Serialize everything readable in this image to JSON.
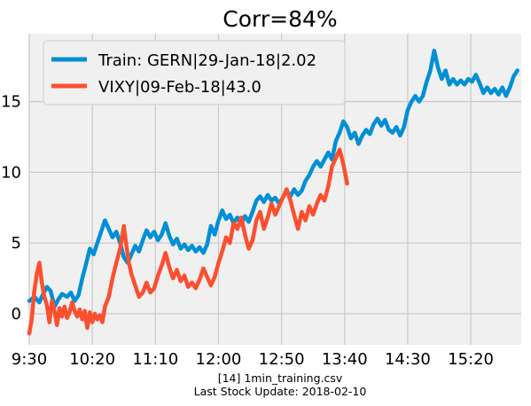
{
  "chart_data": {
    "type": "line",
    "title": "Corr=84%",
    "x_ticks": [
      "9:30",
      "10:20",
      "11:10",
      "12:00",
      "12:50",
      "13:40",
      "14:30",
      "15:20"
    ],
    "y_ticks": [
      0,
      5,
      10,
      15
    ],
    "xlim": [
      "9:30",
      "16:00"
    ],
    "ylim": [
      -2.2,
      19.8
    ],
    "grid": true,
    "legend_position": "top-left",
    "series": [
      {
        "name": "Train: GERN|29-Jan-18|2.02",
        "color": "#008fd5",
        "points": [
          [
            "9:30",
            0.9
          ],
          [
            "9:34",
            1.2
          ],
          [
            "9:38",
            0.8
          ],
          [
            "9:41",
            1.4
          ],
          [
            "9:44",
            1.9
          ],
          [
            "9:47",
            1.6
          ],
          [
            "9:50",
            0.5
          ],
          [
            "9:53",
            1.0
          ],
          [
            "9:56",
            1.4
          ],
          [
            "10:00",
            1.2
          ],
          [
            "10:03",
            1.5
          ],
          [
            "10:06",
            0.9
          ],
          [
            "10:09",
            1.3
          ],
          [
            "10:12",
            2.5
          ],
          [
            "10:15",
            3.5
          ],
          [
            "10:18",
            4.6
          ],
          [
            "10:21",
            4.2
          ],
          [
            "10:24",
            5.0
          ],
          [
            "10:27",
            5.8
          ],
          [
            "10:30",
            6.6
          ],
          [
            "10:33",
            6.0
          ],
          [
            "10:36",
            5.4
          ],
          [
            "10:39",
            5.8
          ],
          [
            "10:42",
            5.0
          ],
          [
            "10:45",
            4.0
          ],
          [
            "10:48",
            3.6
          ],
          [
            "10:51",
            4.2
          ],
          [
            "10:54",
            4.8
          ],
          [
            "10:57",
            4.4
          ],
          [
            "11:00",
            5.2
          ],
          [
            "11:03",
            5.9
          ],
          [
            "11:06",
            5.4
          ],
          [
            "11:09",
            5.8
          ],
          [
            "11:12",
            5.2
          ],
          [
            "11:15",
            5.6
          ],
          [
            "11:18",
            6.4
          ],
          [
            "11:21",
            5.5
          ],
          [
            "11:24",
            4.9
          ],
          [
            "11:27",
            5.3
          ],
          [
            "11:30",
            4.6
          ],
          [
            "11:33",
            4.9
          ],
          [
            "11:36",
            4.5
          ],
          [
            "11:39",
            4.8
          ],
          [
            "11:42",
            4.4
          ],
          [
            "11:45",
            4.7
          ],
          [
            "11:48",
            4.3
          ],
          [
            "11:51",
            4.9
          ],
          [
            "11:54",
            6.2
          ],
          [
            "11:57",
            5.6
          ],
          [
            "12:00",
            6.6
          ],
          [
            "12:03",
            7.3
          ],
          [
            "12:06",
            6.7
          ],
          [
            "12:09",
            7.0
          ],
          [
            "12:12",
            6.4
          ],
          [
            "12:15",
            6.8
          ],
          [
            "12:18",
            6.3
          ],
          [
            "12:21",
            6.9
          ],
          [
            "12:24",
            6.5
          ],
          [
            "12:27",
            7.2
          ],
          [
            "12:30",
            8.0
          ],
          [
            "12:33",
            8.3
          ],
          [
            "12:36",
            7.9
          ],
          [
            "12:39",
            8.4
          ],
          [
            "12:42",
            8.0
          ],
          [
            "12:45",
            8.2
          ],
          [
            "12:48",
            7.8
          ],
          [
            "12:51",
            8.2
          ],
          [
            "12:54",
            8.7
          ],
          [
            "12:57",
            8.3
          ],
          [
            "13:00",
            8.8
          ],
          [
            "13:03",
            8.4
          ],
          [
            "13:06",
            8.7
          ],
          [
            "13:09",
            9.4
          ],
          [
            "13:12",
            9.8
          ],
          [
            "13:15",
            10.4
          ],
          [
            "13:18",
            10.8
          ],
          [
            "13:21",
            10.4
          ],
          [
            "13:24",
            10.9
          ],
          [
            "13:27",
            11.4
          ],
          [
            "13:30",
            10.9
          ],
          [
            "13:33",
            12.2
          ],
          [
            "13:36",
            12.8
          ],
          [
            "13:39",
            13.6
          ],
          [
            "13:42",
            13.2
          ],
          [
            "13:45",
            12.4
          ],
          [
            "13:48",
            12.8
          ],
          [
            "13:51",
            12.0
          ],
          [
            "13:54",
            12.6
          ],
          [
            "13:57",
            13.0
          ],
          [
            "14:00",
            12.7
          ],
          [
            "14:03",
            13.4
          ],
          [
            "14:06",
            13.8
          ],
          [
            "14:09",
            13.3
          ],
          [
            "14:12",
            13.7
          ],
          [
            "14:15",
            13.0
          ],
          [
            "14:18",
            12.8
          ],
          [
            "14:21",
            13.2
          ],
          [
            "14:24",
            12.6
          ],
          [
            "14:27",
            13.2
          ],
          [
            "14:30",
            14.4
          ],
          [
            "14:33",
            15.0
          ],
          [
            "14:36",
            15.4
          ],
          [
            "14:39",
            15.0
          ],
          [
            "14:42",
            15.4
          ],
          [
            "14:45",
            16.4
          ],
          [
            "14:48",
            17.2
          ],
          [
            "14:51",
            18.6
          ],
          [
            "14:54",
            17.4
          ],
          [
            "14:57",
            16.6
          ],
          [
            "15:00",
            17.2
          ],
          [
            "15:03",
            16.2
          ],
          [
            "15:06",
            16.6
          ],
          [
            "15:09",
            16.2
          ],
          [
            "15:12",
            16.5
          ],
          [
            "15:15",
            16.2
          ],
          [
            "15:18",
            16.6
          ],
          [
            "15:21",
            16.4
          ],
          [
            "15:24",
            16.9
          ],
          [
            "15:27",
            16.3
          ],
          [
            "15:30",
            15.6
          ],
          [
            "15:33",
            16.0
          ],
          [
            "15:36",
            15.6
          ],
          [
            "15:39",
            15.9
          ],
          [
            "15:42",
            15.5
          ],
          [
            "15:45",
            16.0
          ],
          [
            "15:48",
            15.4
          ],
          [
            "15:51",
            16.0
          ],
          [
            "15:54",
            16.8
          ],
          [
            "15:57",
            17.2
          ]
        ]
      },
      {
        "name": "VIXY|09-Feb-18|43.0",
        "color": "#fc4f30",
        "points": [
          [
            "9:30",
            -1.4
          ],
          [
            "9:32",
            -0.4
          ],
          [
            "9:34",
            1.6
          ],
          [
            "9:36",
            2.8
          ],
          [
            "9:38",
            3.6
          ],
          [
            "9:40",
            2.2
          ],
          [
            "9:42",
            1.2
          ],
          [
            "9:44",
            0.6
          ],
          [
            "9:46",
            -0.6
          ],
          [
            "9:48",
            0.9
          ],
          [
            "9:50",
            0.2
          ],
          [
            "9:52",
            -0.8
          ],
          [
            "9:54",
            0.4
          ],
          [
            "9:56",
            -0.2
          ],
          [
            "9:58",
            0.5
          ],
          [
            "10:00",
            -0.3
          ],
          [
            "10:02",
            0.1
          ],
          [
            "10:04",
            0.8
          ],
          [
            "10:06",
            0.2
          ],
          [
            "10:08",
            -0.2
          ],
          [
            "10:10",
            0.3
          ],
          [
            "10:12",
            -0.4
          ],
          [
            "10:14",
            0.2
          ],
          [
            "10:16",
            -1.0
          ],
          [
            "10:18",
            0.1
          ],
          [
            "10:20",
            -0.6
          ],
          [
            "10:22",
            0.0
          ],
          [
            "10:24",
            -0.4
          ],
          [
            "10:26",
            -0.1
          ],
          [
            "10:28",
            -0.6
          ],
          [
            "10:30",
            0.5
          ],
          [
            "10:33",
            1.2
          ],
          [
            "10:36",
            2.5
          ],
          [
            "10:39",
            3.6
          ],
          [
            "10:42",
            4.6
          ],
          [
            "10:45",
            6.2
          ],
          [
            "10:47",
            4.8
          ],
          [
            "10:49",
            3.6
          ],
          [
            "10:51",
            2.8
          ],
          [
            "10:54",
            2.0
          ],
          [
            "10:57",
            1.2
          ],
          [
            "11:00",
            1.5
          ],
          [
            "11:03",
            2.2
          ],
          [
            "11:06",
            1.5
          ],
          [
            "11:09",
            1.8
          ],
          [
            "11:12",
            2.7
          ],
          [
            "11:15",
            3.4
          ],
          [
            "11:18",
            4.3
          ],
          [
            "11:21",
            3.3
          ],
          [
            "11:24",
            2.5
          ],
          [
            "11:27",
            3.1
          ],
          [
            "11:30",
            2.3
          ],
          [
            "11:33",
            2.7
          ],
          [
            "11:36",
            1.9
          ],
          [
            "11:39",
            2.2
          ],
          [
            "11:42",
            1.8
          ],
          [
            "11:45",
            2.4
          ],
          [
            "11:48",
            3.2
          ],
          [
            "11:51",
            2.6
          ],
          [
            "11:54",
            2.0
          ],
          [
            "11:57",
            2.6
          ],
          [
            "12:00",
            3.6
          ],
          [
            "12:03",
            4.4
          ],
          [
            "12:06",
            5.4
          ],
          [
            "12:09",
            5.0
          ],
          [
            "12:12",
            6.4
          ],
          [
            "12:15",
            6.0
          ],
          [
            "12:18",
            6.8
          ],
          [
            "12:21",
            5.6
          ],
          [
            "12:24",
            4.6
          ],
          [
            "12:27",
            5.2
          ],
          [
            "12:30",
            6.6
          ],
          [
            "12:33",
            7.2
          ],
          [
            "12:36",
            6.0
          ],
          [
            "12:39",
            6.8
          ],
          [
            "12:42",
            7.8
          ],
          [
            "12:45",
            7.0
          ],
          [
            "12:48",
            7.6
          ],
          [
            "12:51",
            8.2
          ],
          [
            "12:54",
            8.8
          ],
          [
            "12:57",
            8.0
          ],
          [
            "13:00",
            7.0
          ],
          [
            "13:03",
            6.0
          ],
          [
            "13:06",
            7.2
          ],
          [
            "13:09",
            6.6
          ],
          [
            "13:12",
            7.6
          ],
          [
            "13:15",
            7.0
          ],
          [
            "13:18",
            7.8
          ],
          [
            "13:21",
            8.4
          ],
          [
            "13:24",
            8.0
          ],
          [
            "13:27",
            9.0
          ],
          [
            "13:30",
            10.4
          ],
          [
            "13:33",
            11.0
          ],
          [
            "13:36",
            11.6
          ],
          [
            "13:39",
            10.6
          ],
          [
            "13:42",
            9.2
          ]
        ]
      }
    ]
  },
  "footer": {
    "line1": "[14] 1min_training.csv",
    "line2": "Last Stock Update: 2018-02-10"
  }
}
